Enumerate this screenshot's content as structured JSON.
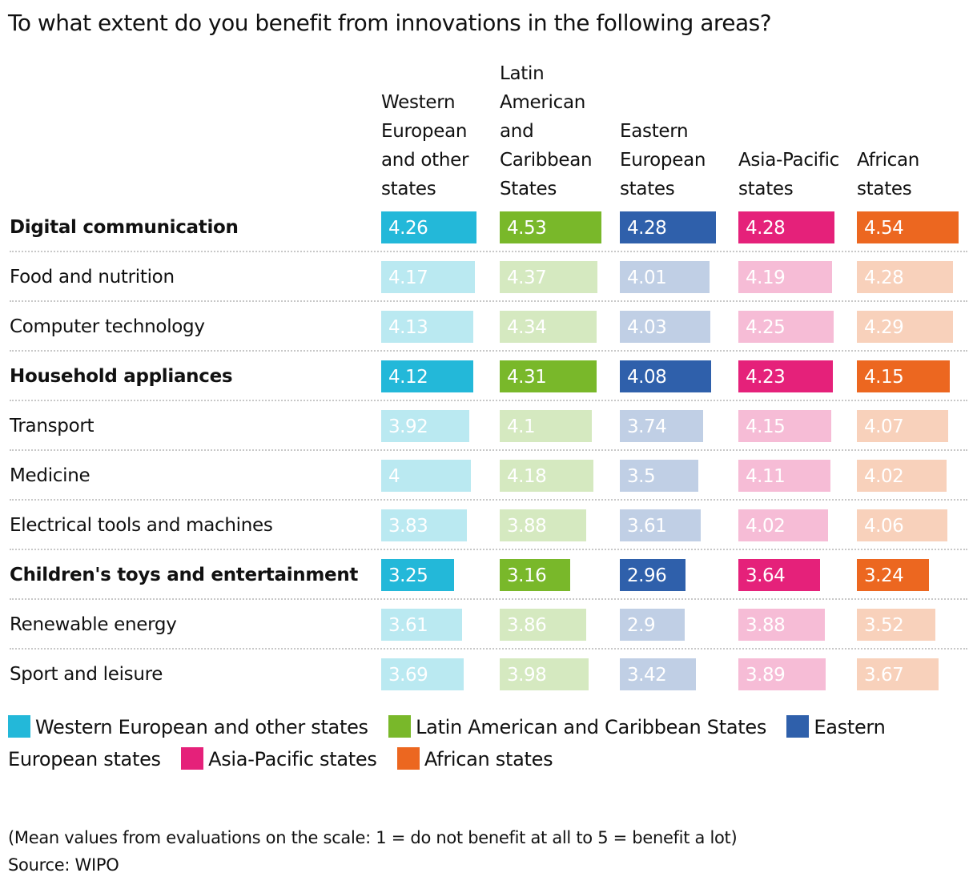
{
  "chart_data": {
    "type": "table",
    "title": "To what extent do you benefit from innovations in the following areas?",
    "xlim": [
      0,
      5
    ],
    "series": [
      {
        "name": "Western European and other states",
        "header": "Western European and other states",
        "color": "#23b8d9",
        "light_color": "#bae9f1",
        "values": [
          4.26,
          4.17,
          4.13,
          4.12,
          3.92,
          4,
          3.83,
          3.25,
          3.61,
          3.69
        ]
      },
      {
        "name": "Latin American and Caribbean States",
        "header": "Latin American and Caribbean States",
        "color": "#79b82a",
        "light_color": "#d5e9c0",
        "values": [
          4.53,
          4.37,
          4.34,
          4.31,
          4.1,
          4.18,
          3.88,
          3.16,
          3.86,
          3.98
        ]
      },
      {
        "name": "Eastern European states",
        "header": "Eastern European states",
        "color": "#2f60ab",
        "light_color": "#c0cfe5",
        "values": [
          4.28,
          4.01,
          4.03,
          4.08,
          3.74,
          3.5,
          3.61,
          2.96,
          2.9,
          3.42
        ]
      },
      {
        "name": "Asia-Pacific states",
        "header": "Asia-Pacific states",
        "color": "#e5217a",
        "light_color": "#f6bcd6",
        "values": [
          4.28,
          4.19,
          4.25,
          4.23,
          4.15,
          4.11,
          4.02,
          3.64,
          3.88,
          3.89
        ]
      },
      {
        "name": "African states",
        "header": "African states",
        "color": "#ec6720",
        "light_color": "#f8d1bb",
        "values": [
          4.54,
          4.28,
          4.29,
          4.15,
          4.07,
          4.02,
          4.06,
          3.24,
          3.52,
          3.67
        ]
      }
    ],
    "categories": [
      "Digital communication",
      "Food and nutrition",
      "Computer technology",
      "Household appliances",
      "Transport",
      "Medicine",
      "Electrical tools and machines",
      "Children's toys and entertainment",
      "Renewable energy",
      "Sport and leisure"
    ],
    "highlighted": [
      true,
      false,
      false,
      true,
      false,
      false,
      false,
      true,
      false,
      false
    ],
    "value_labels": [
      [
        "4.26",
        "4.17",
        "4.13",
        "4.12",
        "3.92",
        "4",
        "3.83",
        "3.25",
        "3.61",
        "3.69"
      ],
      [
        "4.53",
        "4.37",
        "4.34",
        "4.31",
        "4.1",
        "4.18",
        "3.88",
        "3.16",
        "3.86",
        "3.98"
      ],
      [
        "4.28",
        "4.01",
        "4.03",
        "4.08",
        "3.74",
        "3.5",
        "3.61",
        "2.96",
        "2.9",
        "3.42"
      ],
      [
        "4.28",
        "4.19",
        "4.25",
        "4.23",
        "4.15",
        "4.11",
        "4.02",
        "3.64",
        "3.88",
        "3.89"
      ],
      [
        "4.54",
        "4.28",
        "4.29",
        "4.15",
        "4.07",
        "4.02",
        "4.06",
        "3.24",
        "3.52",
        "3.67"
      ]
    ],
    "legend": {
      "placement": "bottom",
      "labels": [
        "Western European and other states",
        "Latin American and Caribbean States",
        "Eastern European states",
        "Asia-Pacific states",
        "African states"
      ]
    },
    "note": "(Mean values from evaluations on the scale: 1 = do not benefit at all to 5 = benefit a lot)",
    "source": "Source: WIPO"
  }
}
